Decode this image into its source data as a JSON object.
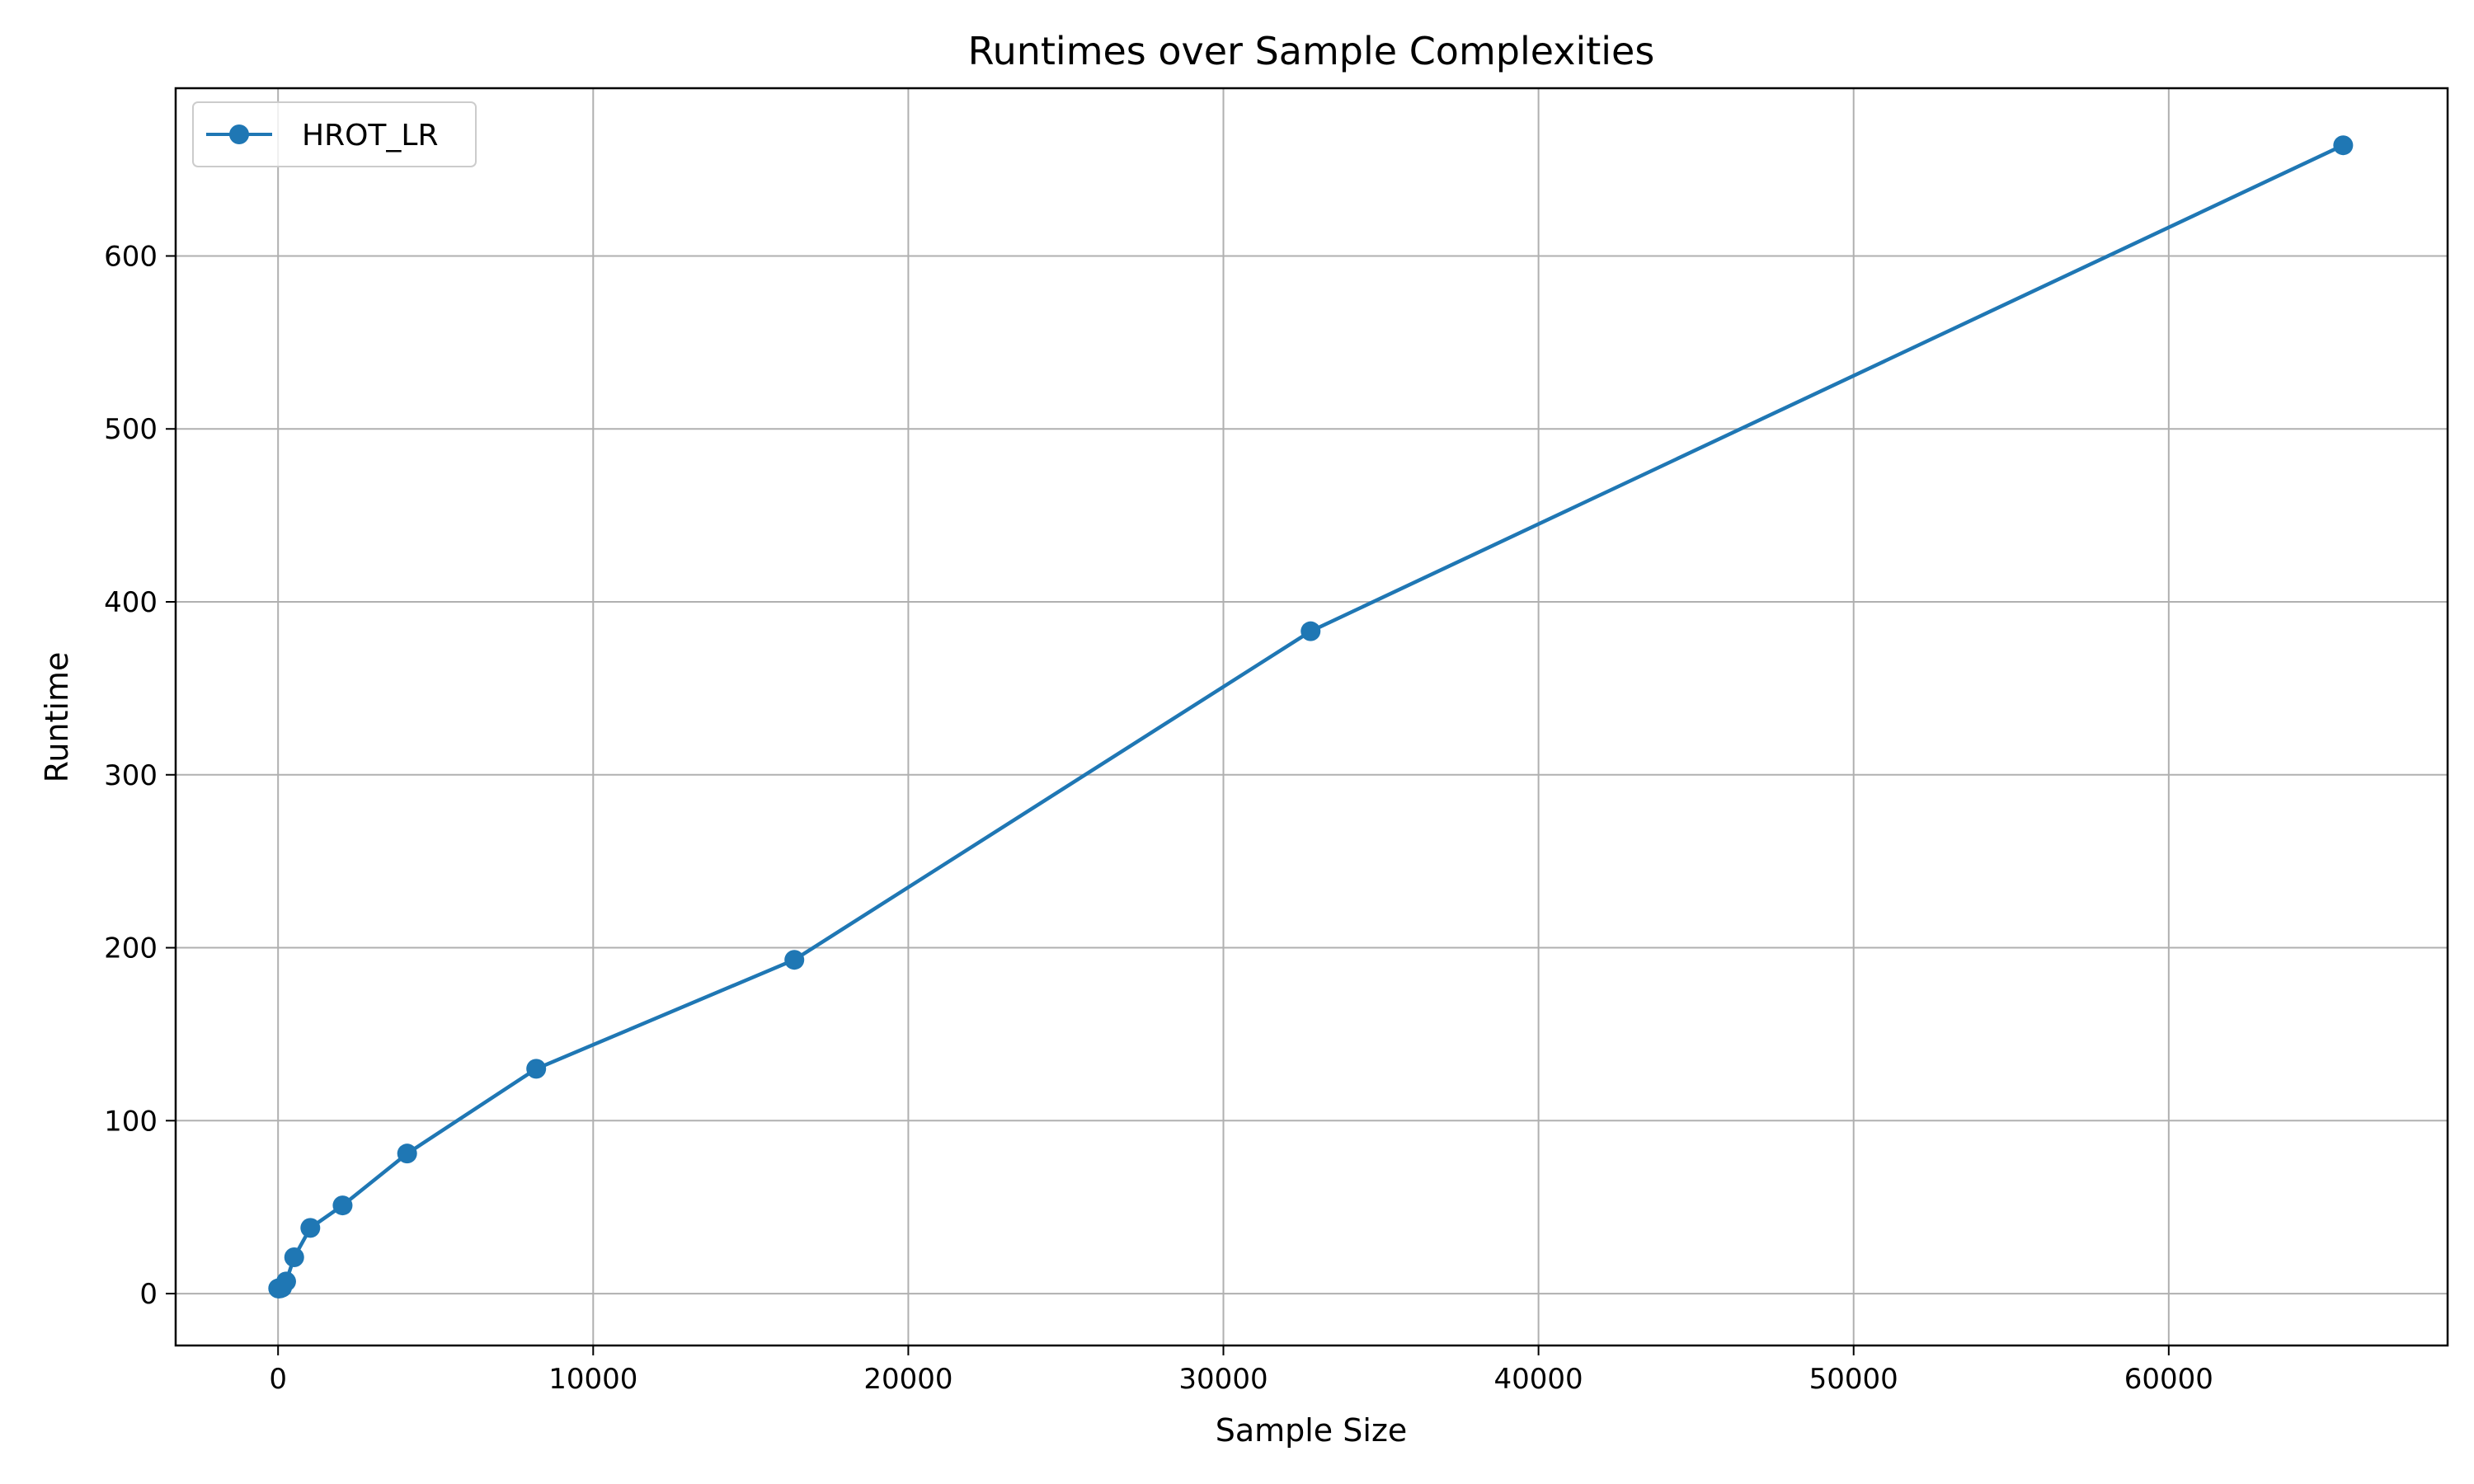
{
  "chart_data": {
    "type": "line",
    "title": "Runtimes over Sample Complexities",
    "xlabel": "Sample Size",
    "ylabel": "Runtime",
    "xlim": [
      -3250,
      68850
    ],
    "ylim": [
      -30,
      697
    ],
    "xticks": [
      0,
      10000,
      20000,
      30000,
      40000,
      50000,
      60000
    ],
    "yticks": [
      0,
      100,
      200,
      300,
      400,
      500,
      600
    ],
    "grid": true,
    "legend_position": "top-left",
    "series": [
      {
        "name": "HROT_LR",
        "color": "#1f77b4",
        "x": [
          4,
          8,
          16,
          32,
          64,
          128,
          256,
          512,
          1024,
          2048,
          4096,
          8192,
          16384,
          32768,
          65536
        ],
        "y": [
          3,
          3,
          3,
          3,
          3,
          3.5,
          7,
          21,
          38,
          51,
          81,
          130,
          193,
          383,
          664
        ]
      }
    ]
  }
}
